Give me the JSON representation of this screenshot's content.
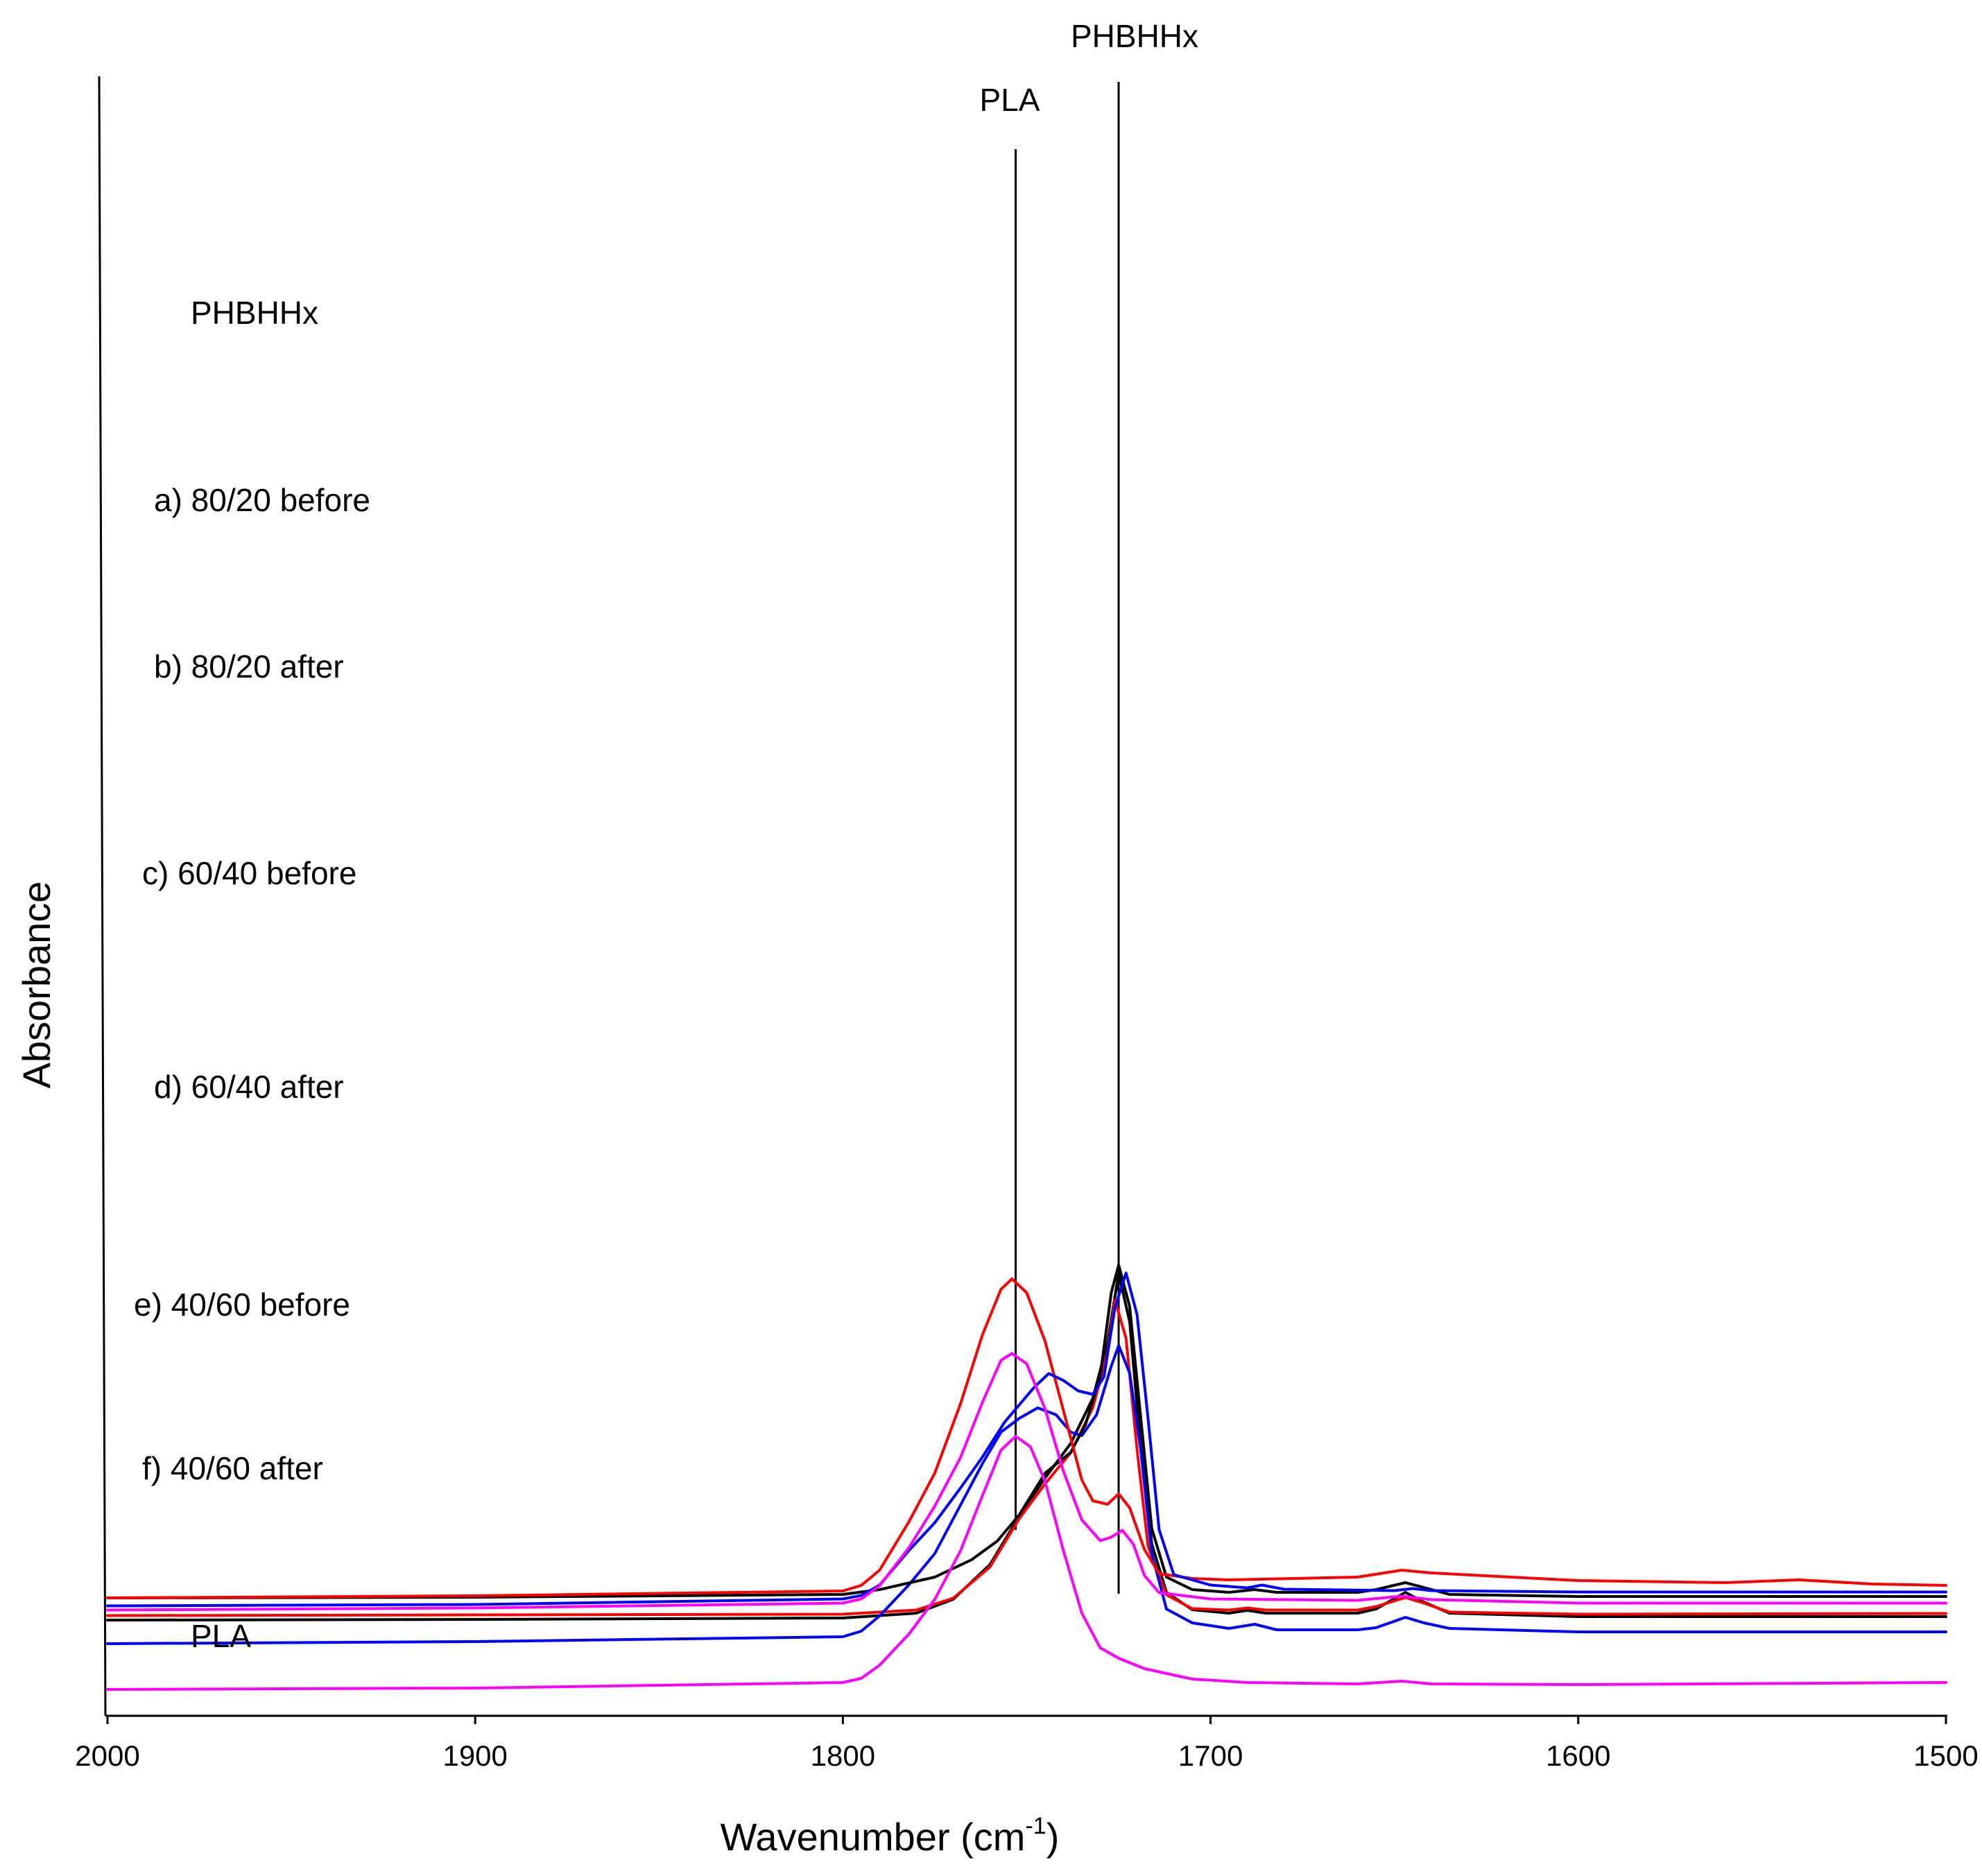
{
  "chart_data": {
    "type": "line",
    "title": "",
    "xlabel": "Wavenumber (cm-1)",
    "xlabel_main": "Wavenumber (cm",
    "xlabel_sup": "-1",
    "xlabel_end": ")",
    "ylabel": "Absorbance",
    "xlim": [
      2000,
      1500
    ],
    "x_reversed": true,
    "x_ticks": [
      "2000",
      "1900",
      "1800",
      "1700",
      "1600",
      "1500"
    ],
    "grid": false,
    "legend": "labels placed beside each trace on the left",
    "reference_lines": [
      {
        "label": "PLA",
        "wavenumber": 1753
      },
      {
        "label": "PHBHHx",
        "wavenumber": 1725
      }
    ],
    "series": [
      {
        "name": "PHBHHx",
        "color": "#000000",
        "baseline": 0.1,
        "start": 2000,
        "points": [
          [
            2000,
            0.0
          ],
          [
            1900,
            0.001
          ],
          [
            1800,
            0.003
          ],
          [
            1780,
            0.01
          ],
          [
            1770,
            0.03
          ],
          [
            1760,
            0.08
          ],
          [
            1752,
            0.15
          ],
          [
            1745,
            0.205
          ],
          [
            1738,
            0.255
          ],
          [
            1732,
            0.32
          ],
          [
            1728,
            0.4
          ],
          [
            1725,
            0.5
          ],
          [
            1722,
            0.43
          ],
          [
            1719,
            0.25
          ],
          [
            1716,
            0.11
          ],
          [
            1712,
            0.04
          ],
          [
            1705,
            0.015
          ],
          [
            1695,
            0.01
          ],
          [
            1690,
            0.014
          ],
          [
            1685,
            0.01
          ],
          [
            1660,
            0.01
          ],
          [
            1655,
            0.016
          ],
          [
            1647,
            0.04
          ],
          [
            1642,
            0.026
          ],
          [
            1635,
            0.01
          ],
          [
            1600,
            0.005
          ],
          [
            1500,
            0.005
          ]
        ]
      },
      {
        "name": "a) 80/20 before",
        "color": "#ff0000",
        "baseline": 0.1065,
        "start": 2000,
        "points": [
          [
            2000,
            0.0
          ],
          [
            1900,
            0.001
          ],
          [
            1800,
            0.002
          ],
          [
            1780,
            0.008
          ],
          [
            1770,
            0.025
          ],
          [
            1760,
            0.07
          ],
          [
            1752,
            0.14
          ],
          [
            1745,
            0.19
          ],
          [
            1738,
            0.235
          ],
          [
            1732,
            0.3
          ],
          [
            1728,
            0.38
          ],
          [
            1726,
            0.455
          ],
          [
            1723,
            0.4
          ],
          [
            1720,
            0.24
          ],
          [
            1717,
            0.1
          ],
          [
            1712,
            0.03
          ],
          [
            1705,
            0.01
          ],
          [
            1695,
            0.008
          ],
          [
            1690,
            0.011
          ],
          [
            1685,
            0.008
          ],
          [
            1660,
            0.008
          ],
          [
            1655,
            0.013
          ],
          [
            1647,
            0.026
          ],
          [
            1642,
            0.018
          ],
          [
            1635,
            0.005
          ],
          [
            1600,
            0.002
          ],
          [
            1500,
            0.003
          ]
        ]
      },
      {
        "name": "b) 80/20 after",
        "color": "#0000ff",
        "baseline": 0.066,
        "start": 2000,
        "points": [
          [
            2000,
            0.0
          ],
          [
            1900,
            0.003
          ],
          [
            1800,
            0.01
          ],
          [
            1795,
            0.018
          ],
          [
            1790,
            0.04
          ],
          [
            1782,
            0.085
          ],
          [
            1775,
            0.13
          ],
          [
            1768,
            0.2
          ],
          [
            1762,
            0.26
          ],
          [
            1757,
            0.305
          ],
          [
            1752,
            0.325
          ],
          [
            1747,
            0.34
          ],
          [
            1742,
            0.33
          ],
          [
            1738,
            0.305
          ],
          [
            1735,
            0.3
          ],
          [
            1731,
            0.33
          ],
          [
            1727,
            0.4
          ],
          [
            1725,
            0.43
          ],
          [
            1722,
            0.39
          ],
          [
            1719,
            0.28
          ],
          [
            1716,
            0.13
          ],
          [
            1712,
            0.05
          ],
          [
            1705,
            0.03
          ],
          [
            1695,
            0.022
          ],
          [
            1688,
            0.028
          ],
          [
            1682,
            0.02
          ],
          [
            1660,
            0.02
          ],
          [
            1655,
            0.023
          ],
          [
            1647,
            0.038
          ],
          [
            1642,
            0.03
          ],
          [
            1635,
            0.022
          ],
          [
            1600,
            0.017
          ],
          [
            1500,
            0.017
          ]
        ]
      },
      {
        "name": "c) 60/40 before",
        "color": "#000000",
        "baseline": 0.132,
        "start": 2000,
        "points": [
          [
            2000,
            0.0
          ],
          [
            1900,
            0.001
          ],
          [
            1800,
            0.005
          ],
          [
            1790,
            0.012
          ],
          [
            1775,
            0.03
          ],
          [
            1765,
            0.055
          ],
          [
            1758,
            0.082
          ],
          [
            1752,
            0.12
          ],
          [
            1745,
            0.18
          ],
          [
            1738,
            0.21
          ],
          [
            1734,
            0.25
          ],
          [
            1730,
            0.32
          ],
          [
            1727,
            0.44
          ],
          [
            1725,
            0.48
          ],
          [
            1722,
            0.42
          ],
          [
            1719,
            0.26
          ],
          [
            1716,
            0.1
          ],
          [
            1712,
            0.03
          ],
          [
            1705,
            0.012
          ],
          [
            1695,
            0.008
          ],
          [
            1688,
            0.012
          ],
          [
            1682,
            0.008
          ],
          [
            1660,
            0.008
          ],
          [
            1655,
            0.012
          ],
          [
            1647,
            0.022
          ],
          [
            1642,
            0.015
          ],
          [
            1635,
            0.005
          ],
          [
            1600,
            0.002
          ],
          [
            1500,
            0.002
          ]
        ]
      },
      {
        "name": "d) 60/40 after",
        "color": "#ff0000",
        "baseline": 0.132,
        "start": 2000,
        "points": [
          [
            2000,
            0.0
          ],
          [
            1900,
            0.003
          ],
          [
            1800,
            0.01
          ],
          [
            1795,
            0.018
          ],
          [
            1790,
            0.04
          ],
          [
            1782,
            0.11
          ],
          [
            1775,
            0.18
          ],
          [
            1768,
            0.28
          ],
          [
            1762,
            0.38
          ],
          [
            1757,
            0.445
          ],
          [
            1754,
            0.46
          ],
          [
            1750,
            0.44
          ],
          [
            1745,
            0.37
          ],
          [
            1740,
            0.27
          ],
          [
            1735,
            0.17
          ],
          [
            1732,
            0.14
          ],
          [
            1728,
            0.135
          ],
          [
            1725,
            0.15
          ],
          [
            1722,
            0.13
          ],
          [
            1718,
            0.07
          ],
          [
            1714,
            0.035
          ],
          [
            1705,
            0.028
          ],
          [
            1695,
            0.026
          ],
          [
            1660,
            0.03
          ],
          [
            1648,
            0.04
          ],
          [
            1640,
            0.036
          ],
          [
            1600,
            0.025
          ],
          [
            1560,
            0.022
          ],
          [
            1540,
            0.026
          ],
          [
            1520,
            0.02
          ],
          [
            1500,
            0.018
          ]
        ]
      },
      {
        "name": "e) 40/60 before",
        "color": "#0000ff",
        "baseline": 0.1205,
        "start": 2000,
        "points": [
          [
            2000,
            0.0
          ],
          [
            1900,
            0.002
          ],
          [
            1800,
            0.01
          ],
          [
            1795,
            0.015
          ],
          [
            1790,
            0.03
          ],
          [
            1782,
            0.08
          ],
          [
            1775,
            0.12
          ],
          [
            1768,
            0.17
          ],
          [
            1762,
            0.215
          ],
          [
            1756,
            0.265
          ],
          [
            1752,
            0.29
          ],
          [
            1748,
            0.315
          ],
          [
            1744,
            0.335
          ],
          [
            1740,
            0.325
          ],
          [
            1736,
            0.31
          ],
          [
            1732,
            0.305
          ],
          [
            1729,
            0.33
          ],
          [
            1726,
            0.43
          ],
          [
            1723,
            0.48
          ],
          [
            1720,
            0.42
          ],
          [
            1717,
            0.27
          ],
          [
            1714,
            0.11
          ],
          [
            1710,
            0.045
          ],
          [
            1700,
            0.03
          ],
          [
            1690,
            0.026
          ],
          [
            1686,
            0.03
          ],
          [
            1680,
            0.024
          ],
          [
            1650,
            0.022
          ],
          [
            1645,
            0.025
          ],
          [
            1640,
            0.022
          ],
          [
            1600,
            0.02
          ],
          [
            1500,
            0.02
          ]
        ]
      },
      {
        "name": "f) 40/60 after",
        "color": "#ff00ff",
        "baseline": 0.1145,
        "start": 2000,
        "points": [
          [
            2000,
            0.0
          ],
          [
            1900,
            0.003
          ],
          [
            1800,
            0.01
          ],
          [
            1795,
            0.016
          ],
          [
            1790,
            0.035
          ],
          [
            1782,
            0.09
          ],
          [
            1775,
            0.15
          ],
          [
            1768,
            0.22
          ],
          [
            1762,
            0.3
          ],
          [
            1757,
            0.36
          ],
          [
            1754,
            0.37
          ],
          [
            1750,
            0.355
          ],
          [
            1745,
            0.29
          ],
          [
            1740,
            0.2
          ],
          [
            1735,
            0.13
          ],
          [
            1730,
            0.1
          ],
          [
            1727,
            0.105
          ],
          [
            1724,
            0.115
          ],
          [
            1721,
            0.095
          ],
          [
            1718,
            0.05
          ],
          [
            1714,
            0.025
          ],
          [
            1700,
            0.016
          ],
          [
            1660,
            0.014
          ],
          [
            1648,
            0.02
          ],
          [
            1640,
            0.015
          ],
          [
            1600,
            0.01
          ],
          [
            1500,
            0.01
          ]
        ]
      },
      {
        "name": "PLA",
        "color": "#ff00ff",
        "baseline": 0.0,
        "start": 2000,
        "points": [
          [
            2000,
            0.0
          ],
          [
            1900,
            0.002
          ],
          [
            1800,
            0.01
          ],
          [
            1795,
            0.016
          ],
          [
            1790,
            0.035
          ],
          [
            1782,
            0.08
          ],
          [
            1775,
            0.13
          ],
          [
            1768,
            0.2
          ],
          [
            1762,
            0.28
          ],
          [
            1757,
            0.345
          ],
          [
            1753,
            0.365
          ],
          [
            1749,
            0.35
          ],
          [
            1745,
            0.3
          ],
          [
            1740,
            0.2
          ],
          [
            1735,
            0.11
          ],
          [
            1730,
            0.06
          ],
          [
            1725,
            0.045
          ],
          [
            1718,
            0.03
          ],
          [
            1705,
            0.015
          ],
          [
            1690,
            0.01
          ],
          [
            1660,
            0.008
          ],
          [
            1648,
            0.012
          ],
          [
            1640,
            0.008
          ],
          [
            1600,
            0.007
          ],
          [
            1500,
            0.01
          ]
        ]
      }
    ],
    "series_labels": [
      "PHBHHx",
      "a) 80/20 before",
      "b) 80/20 after",
      "c) 60/40 before",
      "d) 60/40 after",
      "e) 40/60 before",
      "f) 40/60 after",
      "PLA"
    ]
  }
}
